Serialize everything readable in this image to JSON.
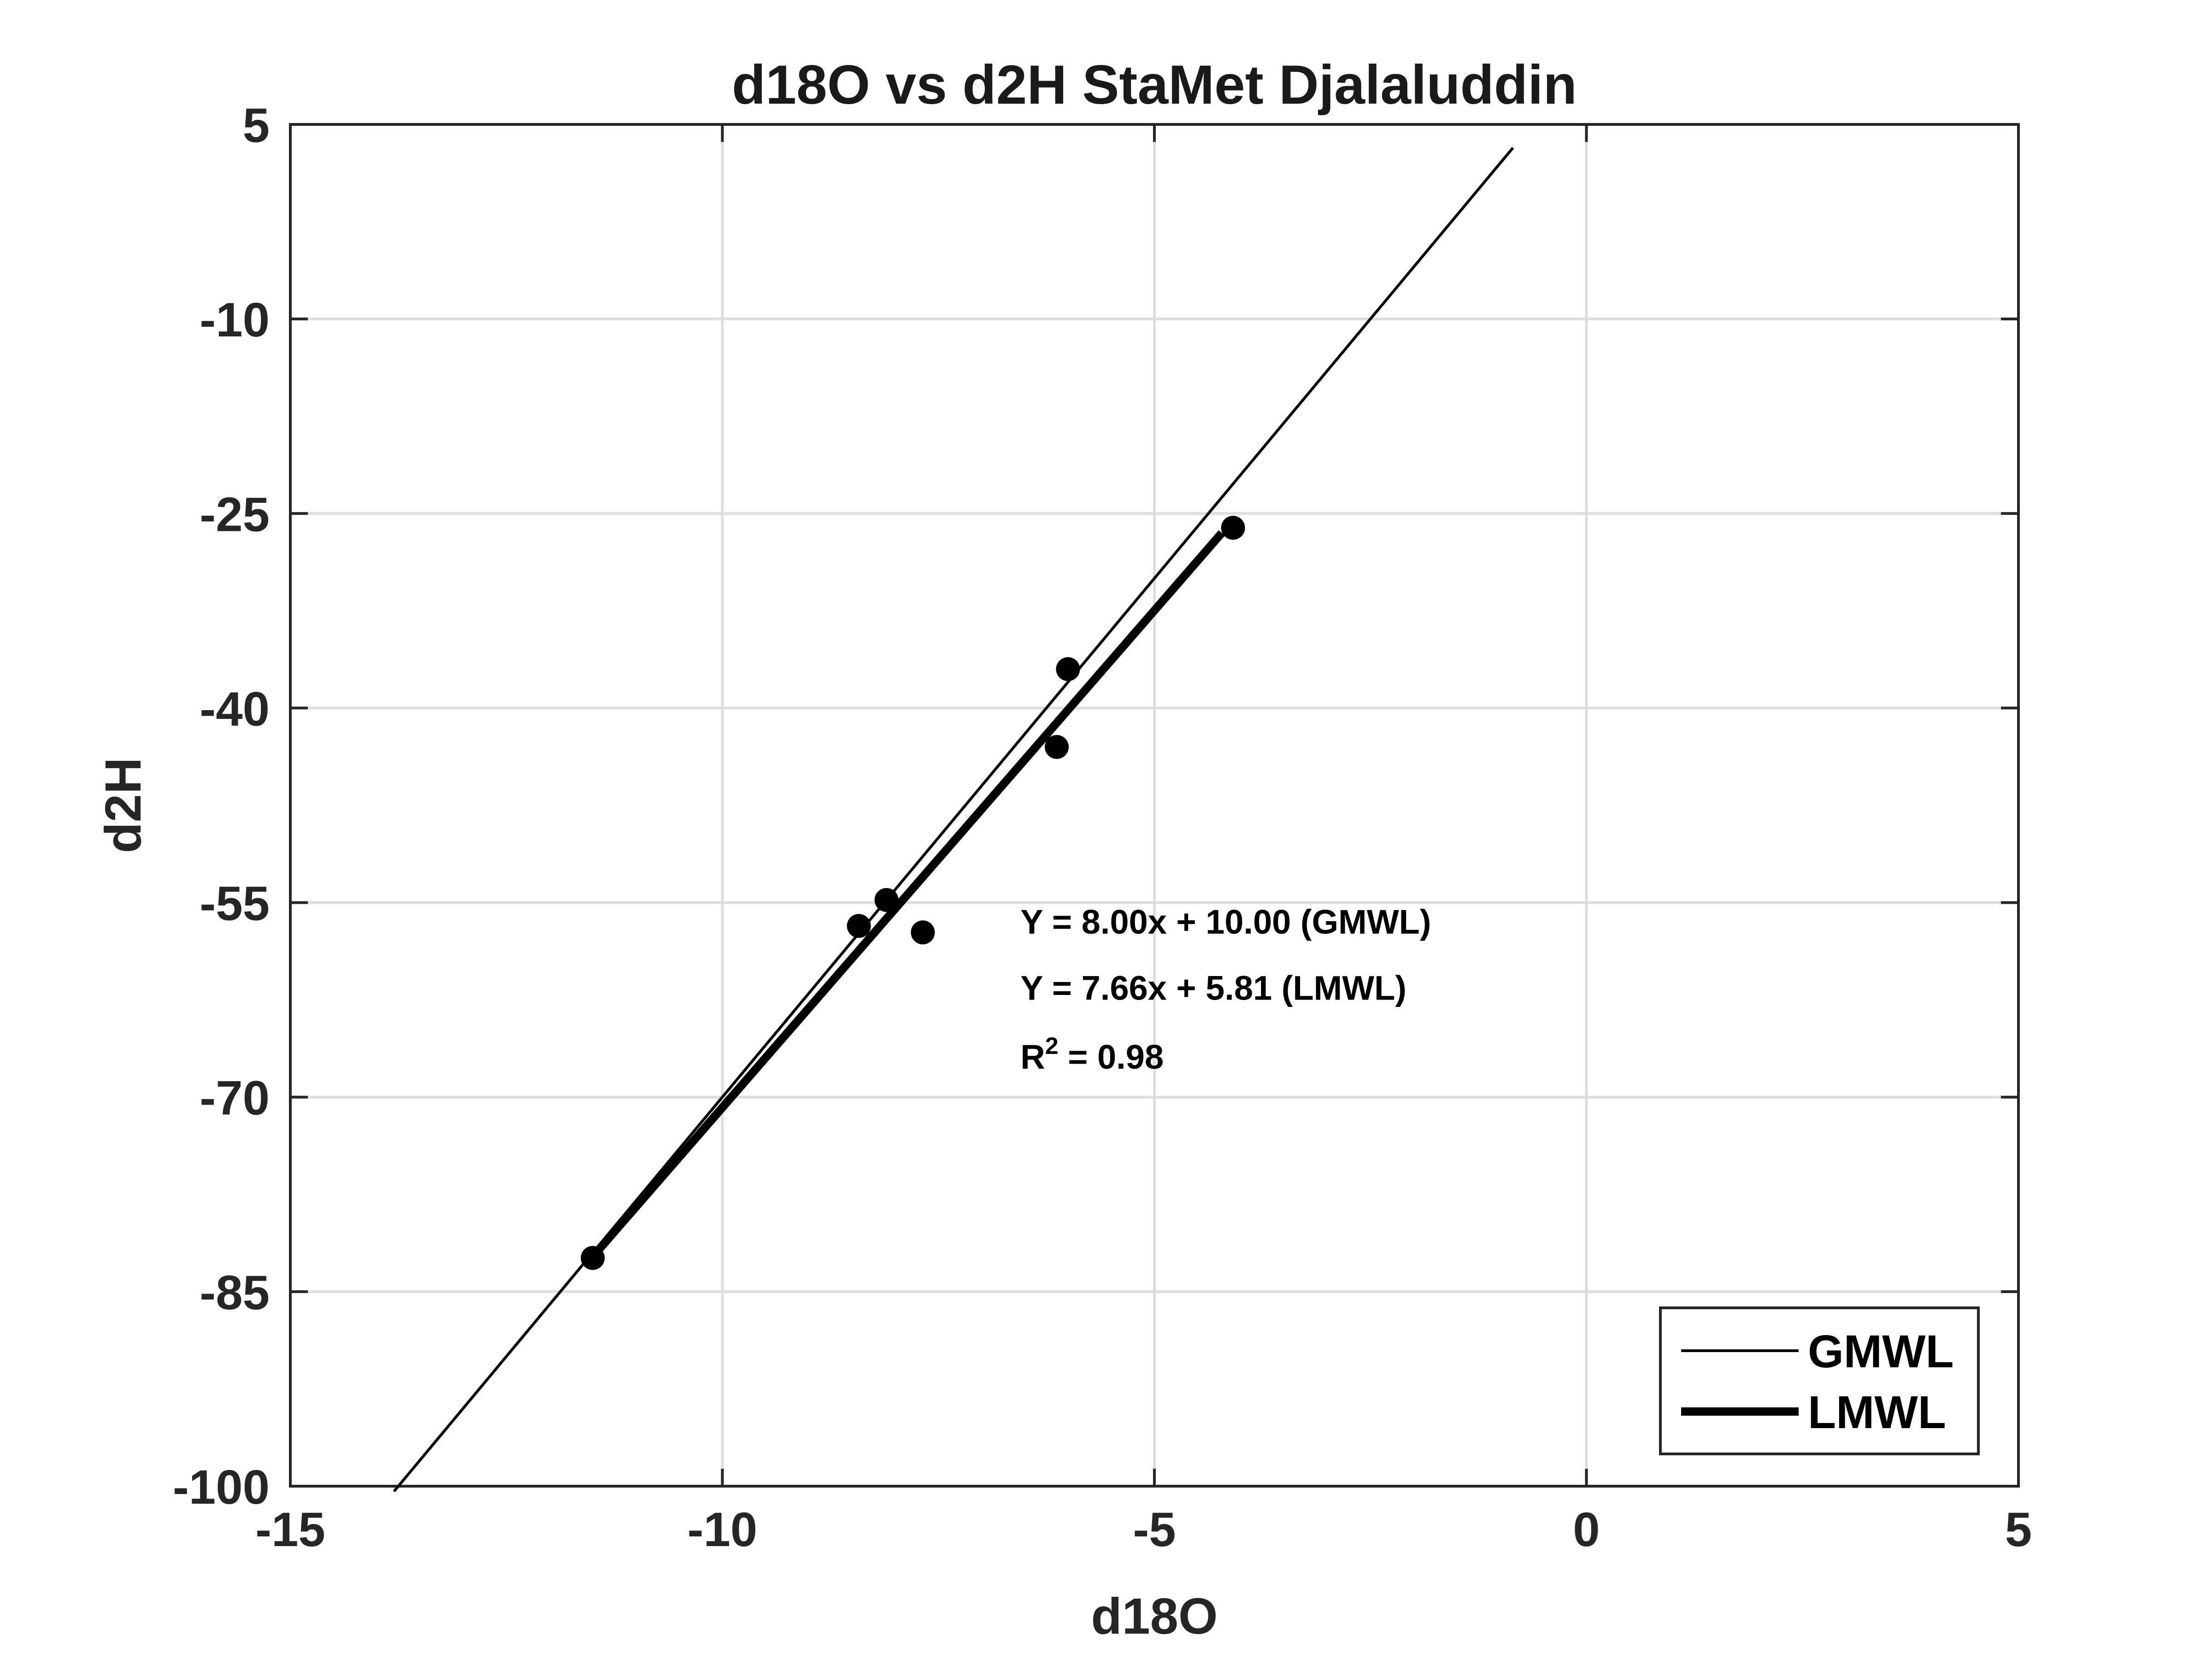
{
  "chart_data": {
    "type": "scatter",
    "title": "d18O vs d2H StaMet Djalaluddin",
    "xlabel": "d18O",
    "ylabel": "d2H",
    "xlim": [
      -15,
      5
    ],
    "ylim": [
      -100,
      5
    ],
    "xticks": [
      -15,
      -10,
      -5,
      0,
      5
    ],
    "xtick_labels": [
      "-15",
      "-10",
      "-5",
      "0",
      "5"
    ],
    "yticks": [
      5,
      -10,
      -25,
      -40,
      -55,
      -70,
      -85,
      -100
    ],
    "ytick_labels": [
      "5",
      "-10",
      "-25",
      "-40",
      "-55",
      "-70",
      "-85",
      "-100"
    ],
    "grid": true,
    "legend_position": "bottom-right",
    "points": {
      "x": [
        -11.5,
        -8.42,
        -8.1,
        -7.68,
        -6.13,
        -6.0,
        -4.09
      ],
      "y": [
        -82.4,
        -56.8,
        -54.8,
        -57.3,
        -43.0,
        -37.0,
        -26.1
      ]
    },
    "series": [
      {
        "name": "GMWL",
        "kind": "line",
        "x": [
          -13.8,
          -0.85
        ],
        "y": [
          -100.4,
          3.2
        ],
        "color": "#000000"
      },
      {
        "name": "LMWL",
        "kind": "line",
        "x": [
          -11.5,
          -4.22
        ],
        "y": [
          -82.3,
          -26.5
        ],
        "color": "#000000"
      }
    ],
    "annotations": [
      {
        "text": "Y = 8.00x + 10.00 (GMWL)",
        "x": -6.55,
        "y": -57.4
      },
      {
        "text": "Y = 7.66x + 5.81 (LMWL)",
        "x": -6.55,
        "y": -62.5
      },
      {
        "text": "R",
        "sup": "2",
        "rest": " = 0.98",
        "x": -6.55,
        "y": -67.8
      }
    ]
  }
}
